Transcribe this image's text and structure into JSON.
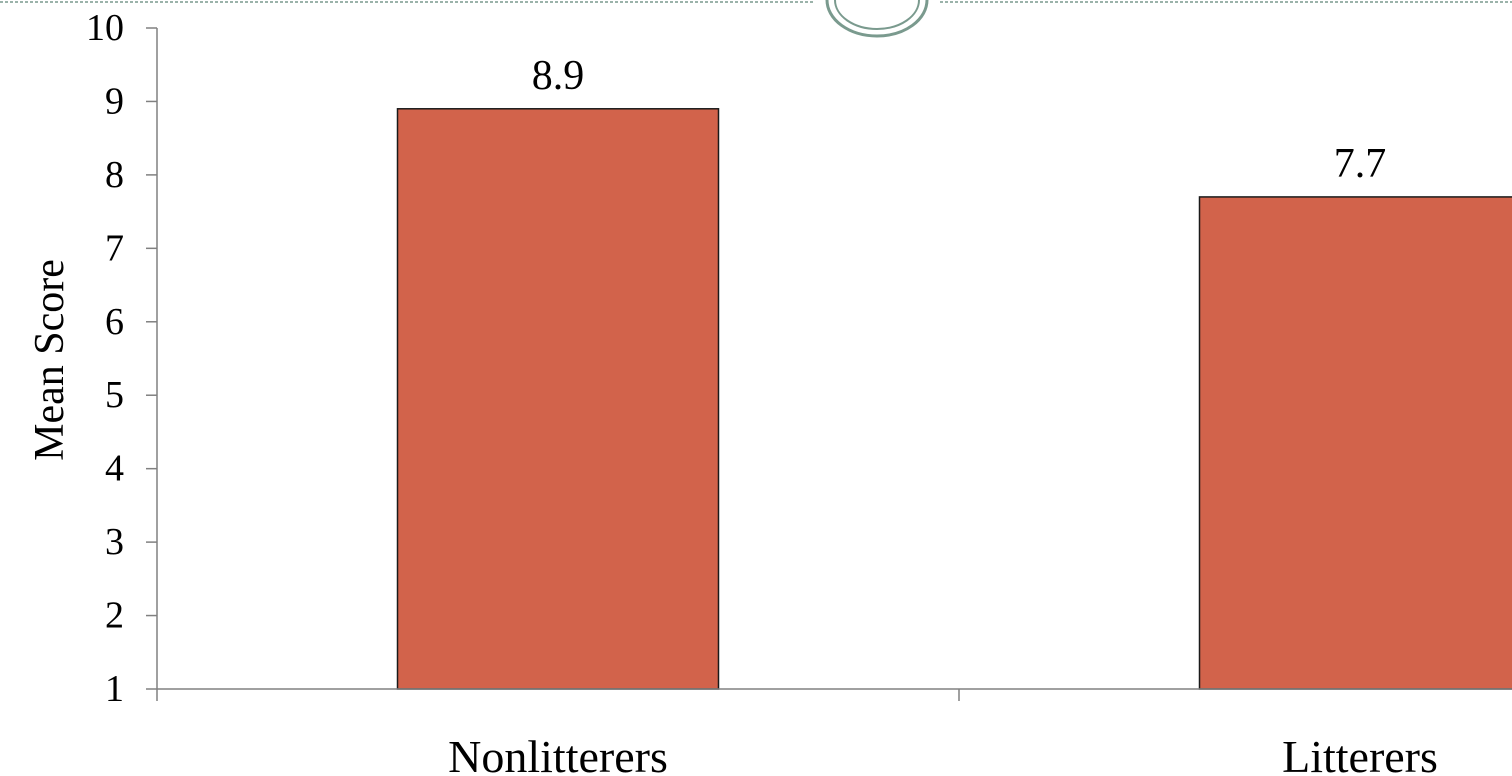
{
  "colors": {
    "bar_fill": "#d2634b",
    "bar_stroke": "#1a1a1a",
    "axis": "#808080",
    "decor": "#7a9a8e"
  },
  "chart_data": {
    "type": "bar",
    "categories": [
      "Nonlitterers",
      "Litterers"
    ],
    "values": [
      8.9,
      7.7
    ],
    "data_labels": [
      "8.9",
      "7.7"
    ],
    "title": "",
    "xlabel": "",
    "ylabel": "Mean Score",
    "ylim": [
      1,
      10
    ],
    "yticks": [
      "1",
      "2",
      "3",
      "4",
      "5",
      "6",
      "7",
      "8",
      "9",
      "10"
    ],
    "grid": false,
    "legend": "none"
  }
}
